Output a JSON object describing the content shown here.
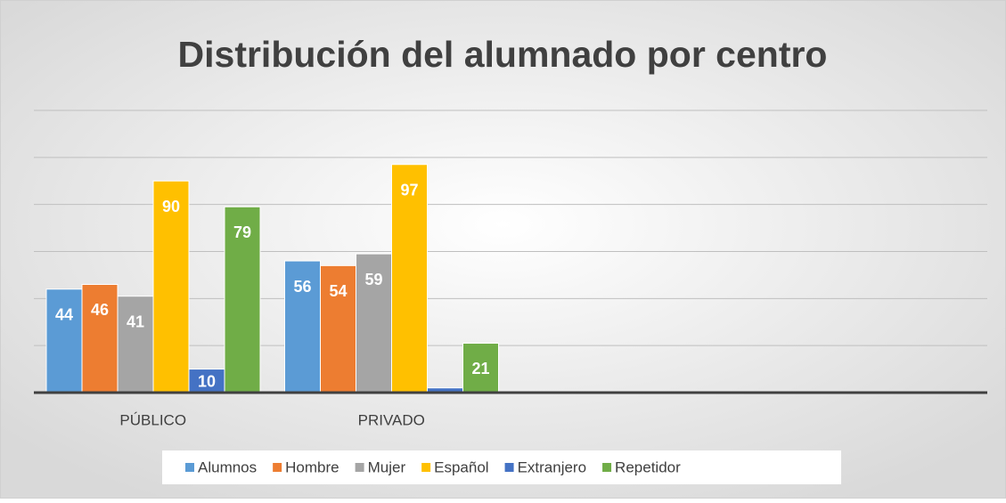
{
  "chart_data": {
    "type": "bar",
    "title": "Distribución del alumnado por centro",
    "categories": [
      "PÚBLICO",
      "PRIVADO",
      null,
      null
    ],
    "series": [
      {
        "name": "Alumnos",
        "color": "#5b9bd5",
        "values": [
          44,
          56,
          null,
          null
        ]
      },
      {
        "name": "Hombre",
        "color": "#ed7d31",
        "values": [
          46,
          54,
          null,
          null
        ]
      },
      {
        "name": "Mujer",
        "color": "#a5a5a5",
        "values": [
          41,
          59,
          null,
          null
        ]
      },
      {
        "name": "Español",
        "color": "#ffc000",
        "values": [
          90,
          97,
          null,
          null
        ]
      },
      {
        "name": "Extranjero",
        "color": "#4472c4",
        "values": [
          10,
          2,
          null,
          null
        ],
        "value_labels": [
          "10",
          null,
          null,
          null
        ]
      },
      {
        "name": "Repetidor",
        "color": "#70ad47",
        "values": [
          79,
          21,
          null,
          null
        ]
      }
    ],
    "ylim": [
      0,
      120
    ],
    "yticks": [
      0,
      20,
      40,
      60,
      80,
      100,
      120
    ],
    "ytick_labels": false,
    "grid": true,
    "legend": "bottom"
  }
}
